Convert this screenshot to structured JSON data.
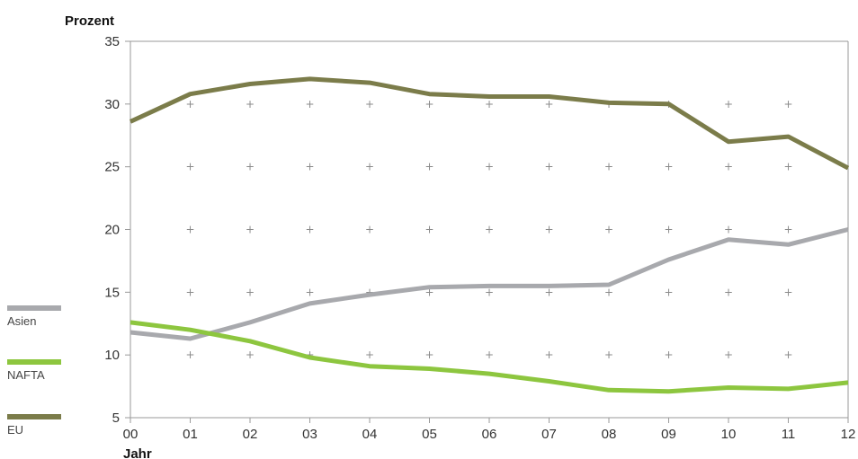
{
  "chart_data": {
    "type": "line",
    "ylabel": "Prozent",
    "xlabel": "Jahr",
    "categories": [
      "00",
      "01",
      "02",
      "03",
      "04",
      "05",
      "06",
      "07",
      "08",
      "09",
      "10",
      "11",
      "12"
    ],
    "ylim": [
      5,
      35
    ],
    "yticks": [
      5,
      10,
      15,
      20,
      25,
      30,
      35
    ],
    "grid": "plus-markers",
    "legend_position": "left",
    "series": [
      {
        "name": "Asien",
        "color": "#a8a9ad",
        "values": [
          11.8,
          11.3,
          12.6,
          14.1,
          14.8,
          15.4,
          15.5,
          15.5,
          15.6,
          17.6,
          19.2,
          18.8,
          20.0
        ]
      },
      {
        "name": "NAFTA",
        "color": "#8dc63f",
        "values": [
          12.6,
          12.0,
          11.1,
          9.8,
          9.1,
          8.9,
          8.5,
          7.9,
          7.2,
          7.1,
          7.4,
          7.3,
          7.8
        ]
      },
      {
        "name": "EU",
        "color": "#7b7c4a",
        "values": [
          28.6,
          30.8,
          31.6,
          32.0,
          31.7,
          30.8,
          30.6,
          30.6,
          30.1,
          30.0,
          27.0,
          27.4,
          24.9
        ]
      }
    ]
  }
}
